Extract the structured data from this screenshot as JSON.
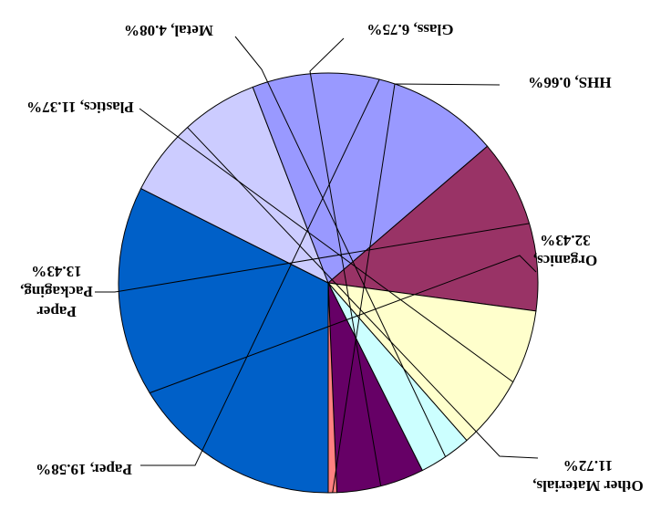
{
  "chart_data": {
    "type": "pie",
    "title": "",
    "rotation": "180deg",
    "slices": [
      {
        "name": "Organics",
        "value": 32.43,
        "label_lines": [
          "Organics,",
          "32.43%"
        ],
        "color": "#0060C8"
      },
      {
        "name": "Other Materials",
        "value": 11.72,
        "label_lines": [
          "Other Materials,",
          "11.72%"
        ],
        "color": "#CCCCFF"
      },
      {
        "name": "Paper",
        "value": 19.58,
        "label_lines": [
          "Paper, 19.58%"
        ],
        "color": "#9999FF"
      },
      {
        "name": "Paper Packaging",
        "value": 13.43,
        "label_lines": [
          "Paper",
          "Packaging,",
          "13.43%"
        ],
        "color": "#993366"
      },
      {
        "name": "Plastics",
        "value": 11.37,
        "label_lines": [
          "Plastics, 11.37%"
        ],
        "color": "#FFFFCC"
      },
      {
        "name": "Metal",
        "value": 4.08,
        "label_lines": [
          "Metal, 4.08%"
        ],
        "color": "#CCFFFF"
      },
      {
        "name": "Glass",
        "value": 6.75,
        "label_lines": [
          "Glass, 6.75%"
        ],
        "color": "#660066"
      },
      {
        "name": "HHS",
        "value": 0.66,
        "label_lines": [
          "HHS, 0.66%"
        ],
        "color": "#FF8080"
      }
    ]
  }
}
